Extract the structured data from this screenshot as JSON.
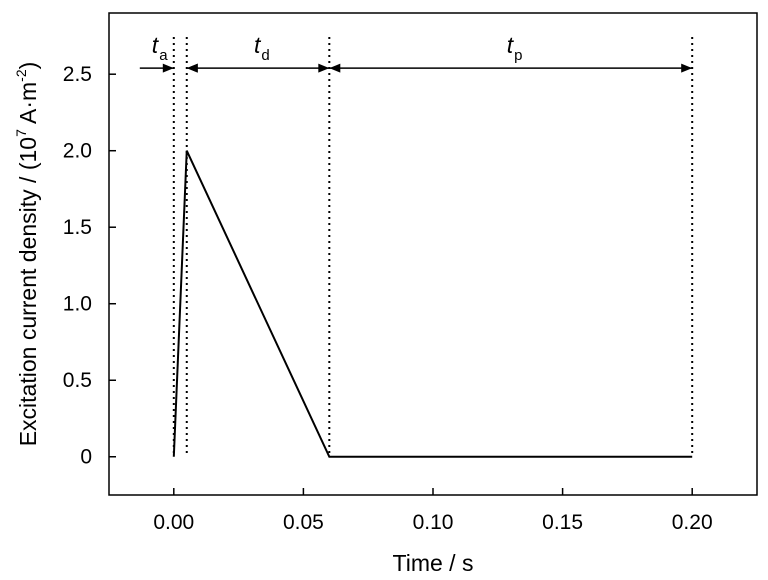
{
  "chart_data": {
    "type": "line",
    "xlabel": "Time / s",
    "ylabel": {
      "prefix": "Excitation current density / (10",
      "exp": "7",
      "mid": " A·m",
      "unit_exp": "-2",
      "suffix": ")"
    },
    "xlim": [
      -0.025,
      0.225
    ],
    "ylim": [
      -0.25,
      2.9
    ],
    "xticks": [
      {
        "value": 0.0,
        "label": "0.00"
      },
      {
        "value": 0.05,
        "label": "0.05"
      },
      {
        "value": 0.1,
        "label": "0.10"
      },
      {
        "value": 0.15,
        "label": "0.15"
      },
      {
        "value": 0.2,
        "label": "0.20"
      }
    ],
    "yticks": [
      {
        "value": 0,
        "label": "0"
      },
      {
        "value": 0.5,
        "label": "0.5"
      },
      {
        "value": 1.0,
        "label": "1.0"
      },
      {
        "value": 1.5,
        "label": "1.5"
      },
      {
        "value": 2.0,
        "label": "2.0"
      },
      {
        "value": 2.5,
        "label": "2.5"
      }
    ],
    "grid": false,
    "series": [
      {
        "x": [
          0.0,
          0.005,
          0.06,
          0.2
        ],
        "y": [
          0,
          2.0,
          0,
          0
        ]
      }
    ],
    "markers": [
      0.0,
      0.005,
      0.06,
      0.2
    ],
    "annotations": [
      {
        "italic": "t",
        "sub": "a",
        "from": 0.0,
        "to": 0.005
      },
      {
        "italic": "t",
        "sub": "d",
        "from": 0.005,
        "to": 0.06
      },
      {
        "italic": "t",
        "sub": "p",
        "from": 0.06,
        "to": 0.2
      }
    ],
    "annotation_y": 2.54
  }
}
